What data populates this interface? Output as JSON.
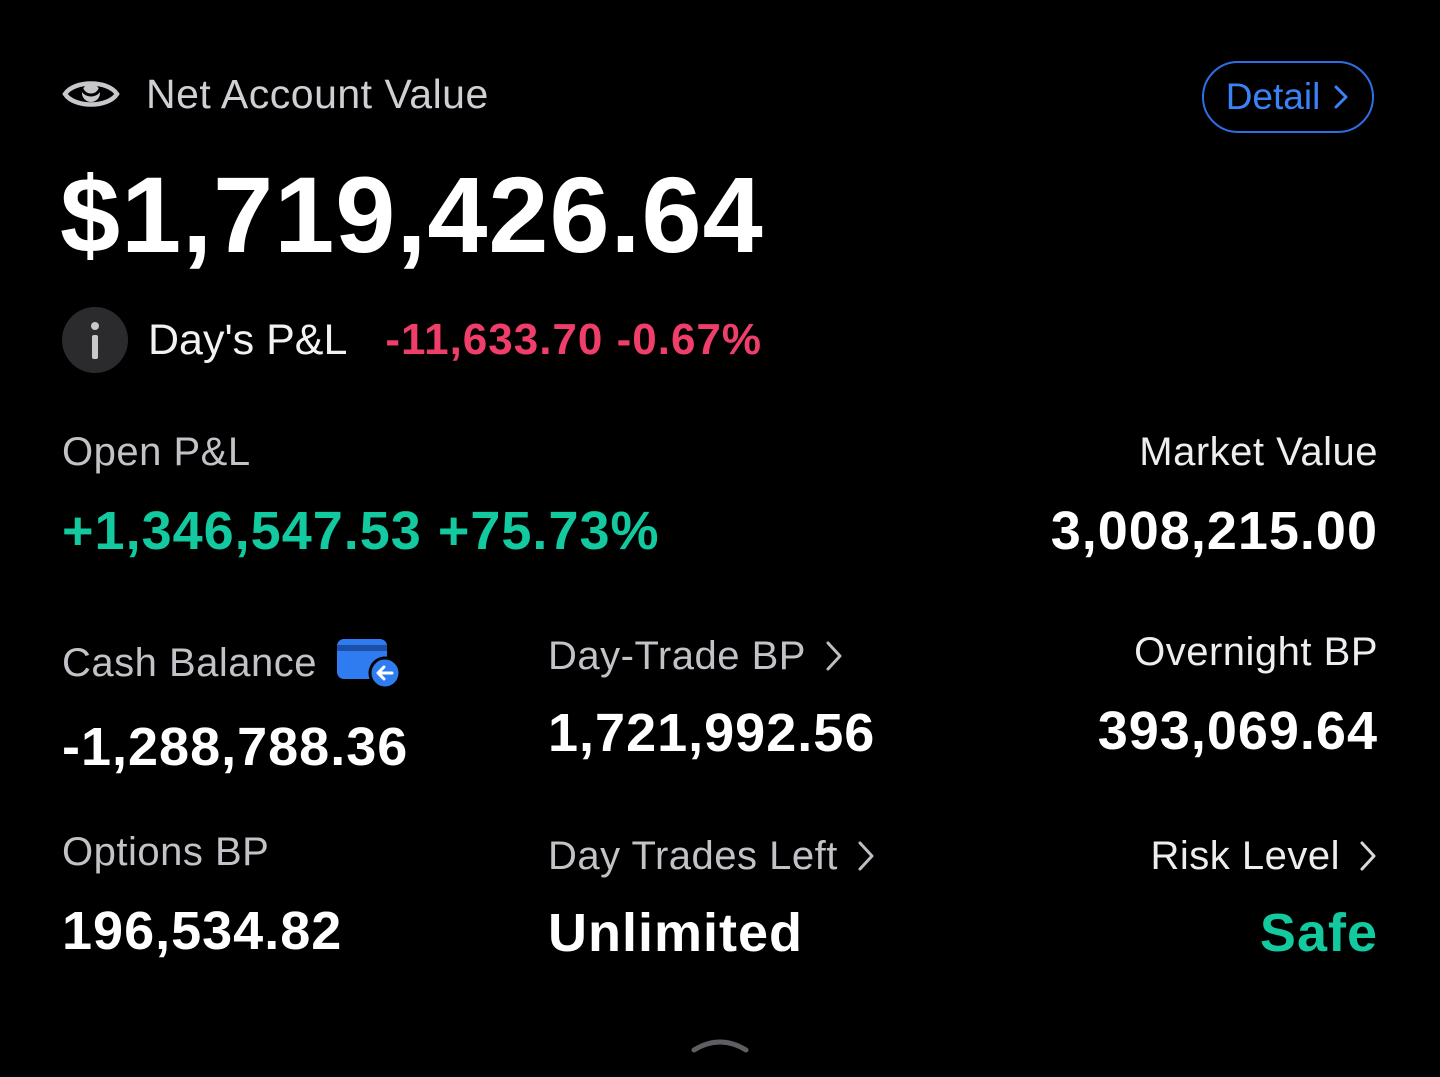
{
  "header": {
    "title": "Net Account Value",
    "detail_label": "Detail",
    "net_account_value": "$1,719,426.64"
  },
  "days_pnl": {
    "label": "Day's P&L",
    "value": "-11,633.70 -0.67%"
  },
  "metrics": {
    "open_pnl": {
      "label": "Open P&L",
      "value": "+1,346,547.53 +75.73%"
    },
    "market_value": {
      "label": "Market Value",
      "value": "3,008,215.00"
    },
    "cash_balance": {
      "label": "Cash Balance",
      "value": "-1,288,788.36"
    },
    "day_trade_bp": {
      "label": "Day-Trade BP",
      "value": "1,721,992.56"
    },
    "overnight_bp": {
      "label": "Overnight BP",
      "value": "393,069.64"
    },
    "options_bp": {
      "label": "Options BP",
      "value": "196,534.82"
    },
    "day_trades_left": {
      "label": "Day Trades Left",
      "value": "Unlimited"
    },
    "risk_level": {
      "label": "Risk Level",
      "value": "Safe"
    }
  },
  "icons": {
    "eye": "eye-icon",
    "info": "info-icon",
    "wallet": "wallet-transfer-icon",
    "chevron": "chevron-right-icon",
    "handle": "chevron-up-icon"
  },
  "colors": {
    "background": "#000000",
    "accent_blue": "#3b82f6",
    "loss_red": "#f03e6a",
    "gain_green": "#12c9a0"
  }
}
